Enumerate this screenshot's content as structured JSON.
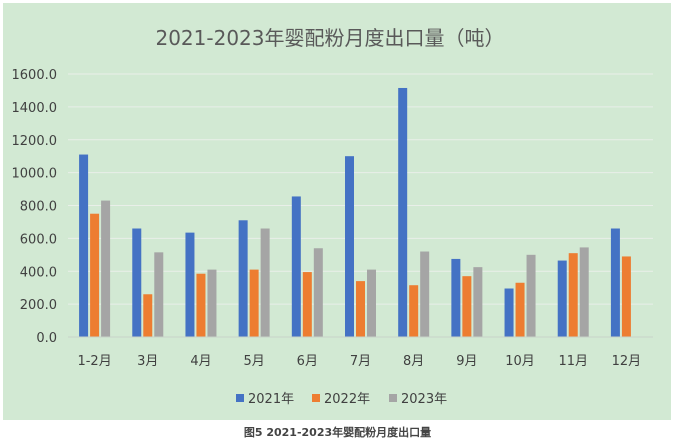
{
  "caption": "图5  2021-2023年婴配粉月度出口量",
  "colors": {
    "background": "#d2e9d3",
    "series": [
      "#4472c4",
      "#ed7d31",
      "#a5a5a5"
    ],
    "grid": "#e9efe9",
    "text": "#404040",
    "title": "#595959"
  },
  "chart_data": {
    "type": "bar",
    "title": "2021-2023年婴配粉月度出口量（吨）",
    "xlabel": "",
    "ylabel": "",
    "ylim": [
      0,
      1600
    ],
    "yticks": [
      "0.0",
      "200.0",
      "400.0",
      "600.0",
      "800.0",
      "1000.0",
      "1200.0",
      "1400.0",
      "1600.0"
    ],
    "grid": true,
    "legend": "bottom",
    "categories": [
      "1-2月",
      "3月",
      "4月",
      "5月",
      "6月",
      "7月",
      "8月",
      "9月",
      "10月",
      "11月",
      "12月"
    ],
    "series": [
      {
        "name": "2021年",
        "values": [
          1110,
          660,
          635,
          710,
          855,
          1100,
          1515,
          475,
          295,
          465,
          660
        ]
      },
      {
        "name": "2022年",
        "values": [
          750,
          260,
          385,
          410,
          395,
          340,
          315,
          370,
          330,
          510,
          490
        ]
      },
      {
        "name": "2023年",
        "values": [
          830,
          515,
          410,
          660,
          540,
          410,
          520,
          425,
          500,
          545,
          null
        ]
      }
    ]
  }
}
